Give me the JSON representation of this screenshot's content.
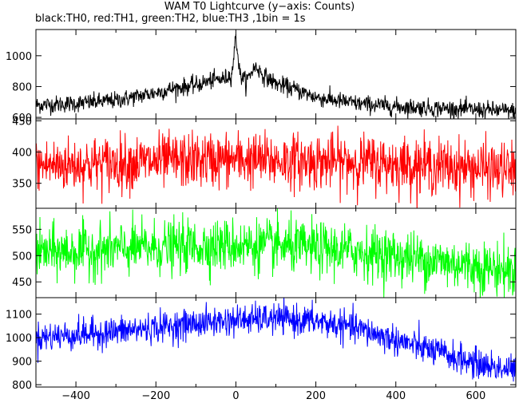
{
  "chart_data": {
    "type": "line",
    "title": "WAM T0 Lightcurve (y−axis: Counts)",
    "subtitle": "black:TH0, red:TH1, green:TH2, blue:TH3 ,1bin = 1s",
    "xlim": [
      -500,
      700
    ],
    "x_ticks": [
      -400,
      -200,
      0,
      200,
      400,
      600
    ],
    "x_tick_labels": [
      "−400",
      "−200",
      "0",
      "200",
      "400",
      "600"
    ],
    "grid": false,
    "panels": [
      {
        "name": "TH0",
        "color": "#000000",
        "ylim": [
          590,
          1170
        ],
        "y_ticks": [
          600,
          800,
          1000
        ],
        "y_tick_labels": [
          "600",
          "800",
          "1000"
        ],
        "x": [
          -500,
          -400,
          -300,
          -200,
          -150,
          -100,
          -60,
          -30,
          -10,
          0,
          10,
          25,
          40,
          50,
          70,
          100,
          150,
          200,
          300,
          400,
          500,
          600,
          700
        ],
        "y": [
          680,
          690,
          710,
          760,
          790,
          810,
          840,
          850,
          880,
          1130,
          880,
          830,
          900,
          930,
          870,
          820,
          780,
          730,
          690,
          670,
          660,
          650,
          640
        ],
        "noise_sd": 28
      },
      {
        "name": "TH1",
        "color": "#ff0000",
        "ylim": [
          310,
          453
        ],
        "y_ticks": [
          350,
          400,
          450
        ],
        "y_tick_labels": [
          "350",
          "400",
          "450"
        ],
        "x": [
          -500,
          -300,
          -100,
          0,
          100,
          300,
          500,
          700
        ],
        "y": [
          378,
          382,
          387,
          388,
          386,
          384,
          378,
          370
        ],
        "noise_sd": 22
      },
      {
        "name": "TH2",
        "color": "#00ff00",
        "ylim": [
          420,
          590
        ],
        "y_ticks": [
          450,
          500,
          550
        ],
        "y_tick_labels": [
          "450",
          "500",
          "550"
        ],
        "x": [
          -500,
          -300,
          -100,
          0,
          100,
          300,
          500,
          700
        ],
        "y": [
          505,
          512,
          518,
          520,
          518,
          508,
          490,
          470
        ],
        "noise_sd": 25
      },
      {
        "name": "TH3",
        "color": "#0000ff",
        "ylim": [
          790,
          1170
        ],
        "y_ticks": [
          800,
          900,
          1000,
          1100
        ],
        "y_tick_labels": [
          "800",
          "900",
          "1000",
          "1100"
        ],
        "x": [
          -500,
          -300,
          -100,
          0,
          100,
          200,
          300,
          400,
          500,
          600,
          700
        ],
        "y": [
          1000,
          1025,
          1060,
          1075,
          1080,
          1070,
          1040,
          990,
          940,
          890,
          860
        ],
        "noise_sd": 32
      }
    ]
  }
}
